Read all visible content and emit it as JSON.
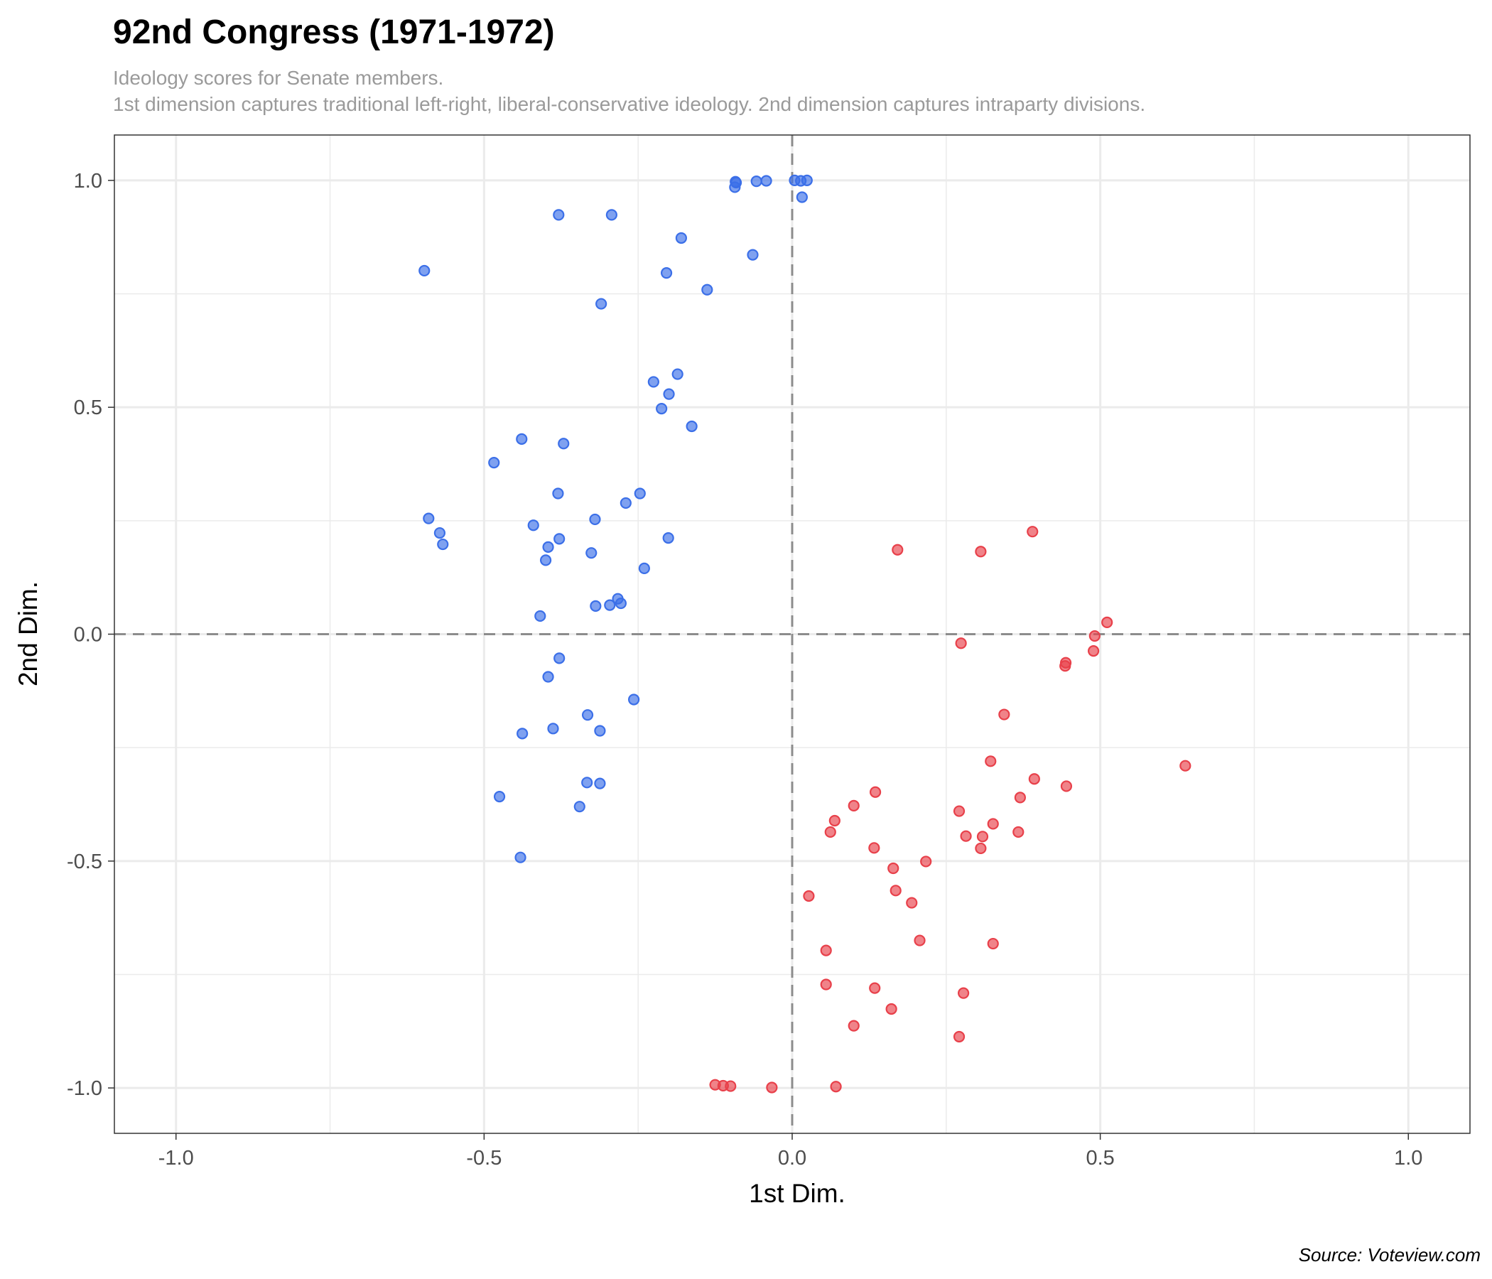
{
  "title": "92nd Congress (1971-1972)",
  "subtitle_line1": "Ideology scores for Senate members.",
  "subtitle_line2": "1st dimension captures traditional left-right, liberal-conservative ideology. 2nd dimension captures intraparty divisions.",
  "caption": "Source: Voteview.com",
  "colors": {
    "blue": "#3b6fe8",
    "red": "#e8404a",
    "grid": "#ebebeb",
    "reference": "#8c8c8c"
  },
  "chart_data": {
    "type": "scatter",
    "xlabel": "1st Dim.",
    "ylabel": "2nd Dim.",
    "xlim": [
      -1.1,
      1.1
    ],
    "ylim": [
      -1.1,
      1.1
    ],
    "x_ticks": [
      -1.0,
      -0.5,
      0.0,
      0.5,
      1.0
    ],
    "y_ticks": [
      -1.0,
      -0.5,
      0.0,
      0.5,
      1.0
    ],
    "x_tick_labels": [
      "-1.0",
      "-0.5",
      "0.0",
      "0.5",
      "1.0"
    ],
    "y_tick_labels": [
      "-1.0",
      "-0.5",
      "0.0",
      "0.5",
      "1.0"
    ],
    "grid": true,
    "legend": "none",
    "reference_lines": {
      "x": 0,
      "y": 0,
      "style": "dashed"
    },
    "series": [
      {
        "color": "blue",
        "points": [
          [
            -0.092,
            0.997
          ],
          [
            -0.091,
            0.995
          ],
          [
            -0.093,
            0.985
          ],
          [
            -0.058,
            0.998
          ],
          [
            -0.042,
            0.999
          ],
          [
            0.004,
            1.0
          ],
          [
            0.014,
            0.999
          ],
          [
            0.024,
            1.0
          ],
          [
            0.016,
            0.963
          ],
          [
            -0.379,
            0.924
          ],
          [
            -0.293,
            0.924
          ],
          [
            -0.18,
            0.873
          ],
          [
            -0.064,
            0.836
          ],
          [
            -0.204,
            0.796
          ],
          [
            -0.597,
            0.801
          ],
          [
            -0.138,
            0.759
          ],
          [
            -0.31,
            0.728
          ],
          [
            -0.186,
            0.573
          ],
          [
            -0.225,
            0.556
          ],
          [
            -0.2,
            0.529
          ],
          [
            -0.212,
            0.497
          ],
          [
            -0.163,
            0.458
          ],
          [
            -0.439,
            0.43
          ],
          [
            -0.371,
            0.42
          ],
          [
            -0.484,
            0.378
          ],
          [
            -0.38,
            0.31
          ],
          [
            -0.247,
            0.31
          ],
          [
            -0.27,
            0.289
          ],
          [
            -0.59,
            0.255
          ],
          [
            -0.32,
            0.253
          ],
          [
            -0.42,
            0.24
          ],
          [
            -0.572,
            0.223
          ],
          [
            -0.378,
            0.21
          ],
          [
            -0.201,
            0.212
          ],
          [
            -0.567,
            0.198
          ],
          [
            -0.396,
            0.192
          ],
          [
            -0.326,
            0.179
          ],
          [
            -0.4,
            0.163
          ],
          [
            -0.24,
            0.145
          ],
          [
            -0.283,
            0.078
          ],
          [
            -0.278,
            0.068
          ],
          [
            -0.296,
            0.064
          ],
          [
            -0.319,
            0.062
          ],
          [
            -0.409,
            0.04
          ],
          [
            -0.378,
            -0.053
          ],
          [
            -0.396,
            -0.094
          ],
          [
            -0.257,
            -0.144
          ],
          [
            -0.332,
            -0.178
          ],
          [
            -0.388,
            -0.208
          ],
          [
            -0.312,
            -0.213
          ],
          [
            -0.438,
            -0.219
          ],
          [
            -0.333,
            -0.327
          ],
          [
            -0.312,
            -0.329
          ],
          [
            -0.475,
            -0.358
          ],
          [
            -0.345,
            -0.38
          ],
          [
            -0.441,
            -0.492
          ]
        ]
      },
      {
        "color": "red",
        "points": [
          [
            0.39,
            0.226
          ],
          [
            0.171,
            0.186
          ],
          [
            0.306,
            0.182
          ],
          [
            0.511,
            0.026
          ],
          [
            0.491,
            -0.004
          ],
          [
            0.274,
            -0.02
          ],
          [
            0.489,
            -0.037
          ],
          [
            0.444,
            -0.063
          ],
          [
            0.443,
            -0.07
          ],
          [
            0.344,
            -0.177
          ],
          [
            0.638,
            -0.29
          ],
          [
            0.322,
            -0.28
          ],
          [
            0.393,
            -0.319
          ],
          [
            0.445,
            -0.335
          ],
          [
            0.135,
            -0.348
          ],
          [
            0.37,
            -0.36
          ],
          [
            0.1,
            -0.378
          ],
          [
            0.271,
            -0.39
          ],
          [
            0.069,
            -0.411
          ],
          [
            0.326,
            -0.418
          ],
          [
            0.062,
            -0.436
          ],
          [
            0.367,
            -0.436
          ],
          [
            0.282,
            -0.445
          ],
          [
            0.309,
            -0.446
          ],
          [
            0.133,
            -0.471
          ],
          [
            0.306,
            -0.472
          ],
          [
            0.217,
            -0.501
          ],
          [
            0.164,
            -0.516
          ],
          [
            0.168,
            -0.565
          ],
          [
            0.027,
            -0.577
          ],
          [
            0.194,
            -0.592
          ],
          [
            0.207,
            -0.675
          ],
          [
            0.326,
            -0.682
          ],
          [
            0.055,
            -0.697
          ],
          [
            0.055,
            -0.772
          ],
          [
            0.134,
            -0.78
          ],
          [
            0.278,
            -0.791
          ],
          [
            0.161,
            -0.826
          ],
          [
            0.1,
            -0.863
          ],
          [
            0.271,
            -0.887
          ],
          [
            -0.125,
            -0.993
          ],
          [
            -0.112,
            -0.995
          ],
          [
            -0.1,
            -0.996
          ],
          [
            -0.033,
            -0.999
          ],
          [
            0.071,
            -0.997
          ]
        ]
      }
    ]
  }
}
